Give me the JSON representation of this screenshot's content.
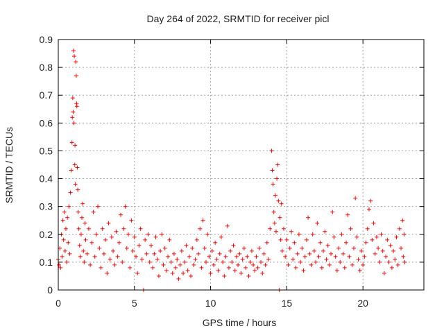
{
  "chart_data": {
    "type": "scatter",
    "title": "Day 264 of 2022, SRMTID for receiver picl",
    "xlabel": "GPS time / hours",
    "ylabel": "SRMTID / TECUs",
    "xlim": [
      0,
      24
    ],
    "ylim": [
      0,
      0.9
    ],
    "xticks": [
      0,
      5,
      10,
      15,
      20
    ],
    "xtick_labels": [
      "0",
      "5",
      "10",
      "15",
      "20"
    ],
    "yticks": [
      0,
      0.1,
      0.2,
      0.3,
      0.4,
      0.5,
      0.6,
      0.7,
      0.8,
      0.9
    ],
    "ytick_labels": [
      "0",
      "0.1",
      "0.2",
      "0.3",
      "0.4",
      "0.5",
      "0.6",
      "0.7",
      "0.8",
      "0.9"
    ],
    "grid": true,
    "marker": "plus",
    "series": [
      {
        "name": "SRMTID",
        "color": "#ff0000",
        "points": [
          [
            0.0,
            0.11
          ],
          [
            0.05,
            0.09
          ],
          [
            0.1,
            0.15
          ],
          [
            0.15,
            0.08
          ],
          [
            0.2,
            0.2
          ],
          [
            0.25,
            0.12
          ],
          [
            0.3,
            0.25
          ],
          [
            0.35,
            0.18
          ],
          [
            0.4,
            0.28
          ],
          [
            0.45,
            0.14
          ],
          [
            0.5,
            0.22
          ],
          [
            0.55,
            0.1
          ],
          [
            0.6,
            0.26
          ],
          [
            0.65,
            0.17
          ],
          [
            0.7,
            0.3
          ],
          [
            0.75,
            0.13
          ],
          [
            0.8,
            0.35
          ],
          [
            0.85,
            0.43
          ],
          [
            0.9,
            0.53
          ],
          [
            0.92,
            0.62
          ],
          [
            0.95,
            0.69
          ],
          [
            0.98,
            0.64
          ],
          [
            1.0,
            0.86
          ],
          [
            1.03,
            0.6
          ],
          [
            1.05,
            0.84
          ],
          [
            1.08,
            0.45
          ],
          [
            1.1,
            0.52
          ],
          [
            1.12,
            0.38
          ],
          [
            1.15,
            0.82
          ],
          [
            1.18,
            0.77
          ],
          [
            1.2,
            0.67
          ],
          [
            1.22,
            0.66
          ],
          [
            1.25,
            0.44
          ],
          [
            1.28,
            0.36
          ],
          [
            1.3,
            0.28
          ],
          [
            1.35,
            0.22
          ],
          [
            1.4,
            0.16
          ],
          [
            1.45,
            0.12
          ],
          [
            1.5,
            0.2
          ],
          [
            1.55,
            0.26
          ],
          [
            1.6,
            0.31
          ],
          [
            1.65,
            0.14
          ],
          [
            1.7,
            0.1
          ],
          [
            1.75,
            0.24
          ],
          [
            1.8,
            0.18
          ],
          [
            1.9,
            0.13
          ],
          [
            2.0,
            0.22
          ],
          [
            2.1,
            0.09
          ],
          [
            2.2,
            0.17
          ],
          [
            2.3,
            0.28
          ],
          [
            2.4,
            0.12
          ],
          [
            2.5,
            0.2
          ],
          [
            2.6,
            0.3
          ],
          [
            2.7,
            0.15
          ],
          [
            2.8,
            0.08
          ],
          [
            2.9,
            0.22
          ],
          [
            3.0,
            0.13
          ],
          [
            3.1,
            0.18
          ],
          [
            3.2,
            0.06
          ],
          [
            3.3,
            0.24
          ],
          [
            3.4,
            0.11
          ],
          [
            3.5,
            0.19
          ],
          [
            3.6,
            0.14
          ],
          [
            3.7,
            0.09
          ],
          [
            3.8,
            0.21
          ],
          [
            3.9,
            0.12
          ],
          [
            4.0,
            0.17
          ],
          [
            4.1,
            0.27
          ],
          [
            4.2,
            0.1
          ],
          [
            4.3,
            0.22
          ],
          [
            4.4,
            0.3
          ],
          [
            4.5,
            0.15
          ],
          [
            4.6,
            0.2
          ],
          [
            4.7,
            0.08
          ],
          [
            4.8,
            0.25
          ],
          [
            4.9,
            0.14
          ],
          [
            5.0,
            0.19
          ],
          [
            5.1,
            0.12
          ],
          [
            5.2,
            0.06
          ],
          [
            5.3,
            0.16
          ],
          [
            5.4,
            0.22
          ],
          [
            5.5,
            0.11
          ],
          [
            5.6,
            0.0
          ],
          [
            5.7,
            0.18
          ],
          [
            5.8,
            0.13
          ],
          [
            5.9,
            0.2
          ],
          [
            6.0,
            0.1
          ],
          [
            6.1,
            0.16
          ],
          [
            6.2,
            0.08
          ],
          [
            6.3,
            0.13
          ],
          [
            6.4,
            0.19
          ],
          [
            6.5,
            0.11
          ],
          [
            6.6,
            0.05
          ],
          [
            6.7,
            0.14
          ],
          [
            6.8,
            0.2
          ],
          [
            6.9,
            0.09
          ],
          [
            7.0,
            0.15
          ],
          [
            7.1,
            0.07
          ],
          [
            7.2,
            0.12
          ],
          [
            7.3,
            0.18
          ],
          [
            7.4,
            0.1
          ],
          [
            7.5,
            0.06
          ],
          [
            7.6,
            0.13
          ],
          [
            7.7,
            0.08
          ],
          [
            7.8,
            0.11
          ],
          [
            7.9,
            0.04
          ],
          [
            8.0,
            0.09
          ],
          [
            8.1,
            0.14
          ],
          [
            8.2,
            0.06
          ],
          [
            8.3,
            0.1
          ],
          [
            8.4,
            0.16
          ],
          [
            8.5,
            0.07
          ],
          [
            8.6,
            0.12
          ],
          [
            8.7,
            0.05
          ],
          [
            8.8,
            0.15
          ],
          [
            8.9,
            0.09
          ],
          [
            9.0,
            0.11
          ],
          [
            9.1,
            0.18
          ],
          [
            9.2,
            0.13
          ],
          [
            9.3,
            0.22
          ],
          [
            9.4,
            0.08
          ],
          [
            9.5,
            0.25
          ],
          [
            9.6,
            0.15
          ],
          [
            9.7,
            0.1
          ],
          [
            9.8,
            0.2
          ],
          [
            9.9,
            0.12
          ],
          [
            10.0,
            0.06
          ],
          [
            10.1,
            0.14
          ],
          [
            10.2,
            0.09
          ],
          [
            10.3,
            0.17
          ],
          [
            10.4,
            0.11
          ],
          [
            10.5,
            0.07
          ],
          [
            10.6,
            0.13
          ],
          [
            10.7,
            0.19
          ],
          [
            10.8,
            0.1
          ],
          [
            10.9,
            0.05
          ],
          [
            11.0,
            0.12
          ],
          [
            11.1,
            0.23
          ],
          [
            11.2,
            0.08
          ],
          [
            11.3,
            0.14
          ],
          [
            11.4,
            0.1
          ],
          [
            11.5,
            0.16
          ],
          [
            11.6,
            0.07
          ],
          [
            11.7,
            0.12
          ],
          [
            11.8,
            0.09
          ],
          [
            11.9,
            0.13
          ],
          [
            12.0,
            0.06
          ],
          [
            12.1,
            0.11
          ],
          [
            12.2,
            0.15
          ],
          [
            12.3,
            0.08
          ],
          [
            12.4,
            0.12
          ],
          [
            12.5,
            0.05
          ],
          [
            12.6,
            0.1
          ],
          [
            12.7,
            0.14
          ],
          [
            12.8,
            0.09
          ],
          [
            12.9,
            0.07
          ],
          [
            13.0,
            0.12
          ],
          [
            13.1,
            0.08
          ],
          [
            13.2,
            0.15
          ],
          [
            13.3,
            0.1
          ],
          [
            13.4,
            0.06
          ],
          [
            13.5,
            0.13
          ],
          [
            13.6,
            0.09
          ],
          [
            13.7,
            0.17
          ],
          [
            13.8,
            0.11
          ],
          [
            13.9,
            0.22
          ],
          [
            14.0,
            0.5
          ],
          [
            14.05,
            0.43
          ],
          [
            14.1,
            0.38
          ],
          [
            14.15,
            0.28
          ],
          [
            14.2,
            0.24
          ],
          [
            14.25,
            0.34
          ],
          [
            14.3,
            0.21
          ],
          [
            14.35,
            0.4
          ],
          [
            14.4,
            0.45
          ],
          [
            14.45,
            0.32
          ],
          [
            14.5,
            0.0
          ],
          [
            14.55,
            0.26
          ],
          [
            14.6,
            0.18
          ],
          [
            14.65,
            0.31
          ],
          [
            14.7,
            0.14
          ],
          [
            14.8,
            0.22
          ],
          [
            14.9,
            0.12
          ],
          [
            15.0,
            0.18
          ],
          [
            15.1,
            0.09
          ],
          [
            15.2,
            0.15
          ],
          [
            15.3,
            0.21
          ],
          [
            15.4,
            0.11
          ],
          [
            15.5,
            0.17
          ],
          [
            15.6,
            0.08
          ],
          [
            15.7,
            0.13
          ],
          [
            15.8,
            0.2
          ],
          [
            15.9,
            0.1
          ],
          [
            16.0,
            0.15
          ],
          [
            16.1,
            0.07
          ],
          [
            16.2,
            0.12
          ],
          [
            16.3,
            0.18
          ],
          [
            16.4,
            0.26
          ],
          [
            16.5,
            0.13
          ],
          [
            16.6,
            0.09
          ],
          [
            16.7,
            0.2
          ],
          [
            16.8,
            0.14
          ],
          [
            16.9,
            0.1
          ],
          [
            17.0,
            0.24
          ],
          [
            17.1,
            0.12
          ],
          [
            17.2,
            0.17
          ],
          [
            17.3,
            0.08
          ],
          [
            17.4,
            0.14
          ],
          [
            17.5,
            0.21
          ],
          [
            17.6,
            0.11
          ],
          [
            17.7,
            0.16
          ],
          [
            17.8,
            0.09
          ],
          [
            17.9,
            0.13
          ],
          [
            18.0,
            0.28
          ],
          [
            18.1,
            0.19
          ],
          [
            18.2,
            0.12
          ],
          [
            18.3,
            0.07
          ],
          [
            18.4,
            0.15
          ],
          [
            18.5,
            0.1
          ],
          [
            18.6,
            0.2
          ],
          [
            18.7,
            0.13
          ],
          [
            18.8,
            0.08
          ],
          [
            18.9,
            0.17
          ],
          [
            19.0,
            0.27
          ],
          [
            19.1,
            0.12
          ],
          [
            19.2,
            0.22
          ],
          [
            19.3,
            0.09
          ],
          [
            19.4,
            0.15
          ],
          [
            19.5,
            0.33
          ],
          [
            19.6,
            0.19
          ],
          [
            19.7,
            0.11
          ],
          [
            19.8,
            0.07
          ],
          [
            19.9,
            0.14
          ],
          [
            20.0,
            0.09
          ],
          [
            20.1,
            0.12
          ],
          [
            20.2,
            0.17
          ],
          [
            20.3,
            0.22
          ],
          [
            20.4,
            0.29
          ],
          [
            20.5,
            0.32
          ],
          [
            20.6,
            0.18
          ],
          [
            20.7,
            0.24
          ],
          [
            20.8,
            0.13
          ],
          [
            20.9,
            0.19
          ],
          [
            21.0,
            0.15
          ],
          [
            21.1,
            0.1
          ],
          [
            21.2,
            0.2
          ],
          [
            21.3,
            0.14
          ],
          [
            21.4,
            0.06
          ],
          [
            21.5,
            0.12
          ],
          [
            21.6,
            0.18
          ],
          [
            21.7,
            0.1
          ],
          [
            21.8,
            0.16
          ],
          [
            21.9,
            0.08
          ],
          [
            22.0,
            0.14
          ],
          [
            22.1,
            0.11
          ],
          [
            22.2,
            0.19
          ],
          [
            22.3,
            0.09
          ],
          [
            22.4,
            0.22
          ],
          [
            22.5,
            0.15
          ],
          [
            22.6,
            0.25
          ],
          [
            22.65,
            0.12
          ],
          [
            22.7,
            0.2
          ],
          [
            22.75,
            0.1
          ]
        ]
      }
    ]
  }
}
